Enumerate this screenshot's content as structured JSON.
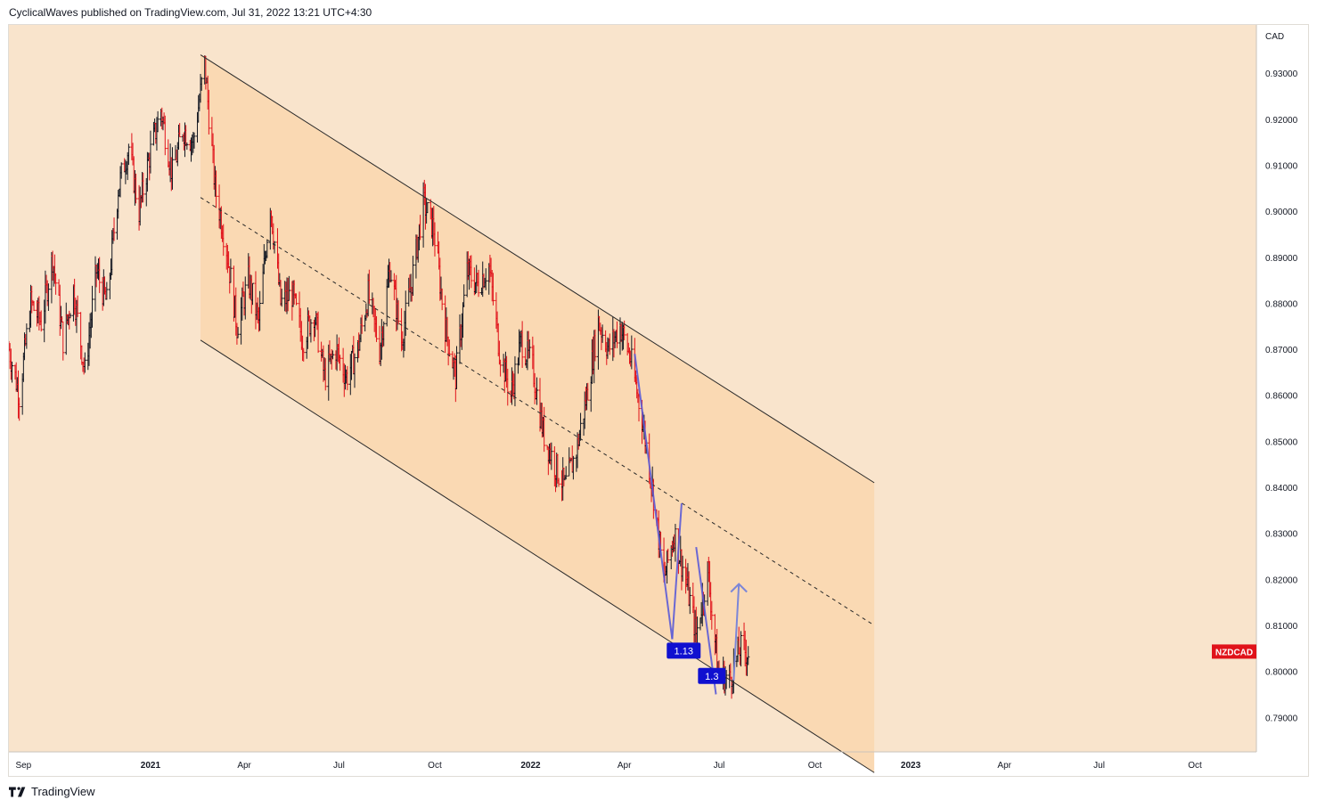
{
  "header": {
    "publish_line": "CyclicalWaves published on TradingView.com, Jul 31, 2022 13:21 UTC+4:30"
  },
  "footer": {
    "brand": "TradingView"
  },
  "colors": {
    "background": "#f9e4cc",
    "channel_fill": "#fad9b3",
    "candle_up": "#131722",
    "candle_down": "#e0121a",
    "wave_line": "#5b5bd6",
    "label_bg": "#1010d0",
    "symbol_badge": "#e0121a"
  },
  "chart_data": {
    "type": "ohlc_bar",
    "symbol": "NZDCAD",
    "y_axis_label": "CAD",
    "ylim": [
      0.7825,
      0.9405
    ],
    "y_ticks": [
      "0.93000",
      "0.92000",
      "0.91000",
      "0.90000",
      "0.89000",
      "0.88000",
      "0.87000",
      "0.86000",
      "0.85000",
      "0.84000",
      "0.83000",
      "0.82000",
      "0.81000",
      "0.80000",
      "0.79000"
    ],
    "x_ticks": [
      {
        "label": "Sep",
        "date": "2020-09-01",
        "bold": false
      },
      {
        "label": "2021",
        "date": "2021-01-01",
        "bold": true
      },
      {
        "label": "Apr",
        "date": "2021-04-01",
        "bold": false
      },
      {
        "label": "Jul",
        "date": "2021-07-01",
        "bold": false
      },
      {
        "label": "Oct",
        "date": "2021-10-01",
        "bold": false
      },
      {
        "label": "2022",
        "date": "2022-01-01",
        "bold": true
      },
      {
        "label": "Apr",
        "date": "2022-04-01",
        "bold": false
      },
      {
        "label": "Jul",
        "date": "2022-07-01",
        "bold": false
      },
      {
        "label": "Oct",
        "date": "2022-10-01",
        "bold": false
      },
      {
        "label": "2023",
        "date": "2023-01-01",
        "bold": true
      },
      {
        "label": "Apr",
        "date": "2023-04-01",
        "bold": false
      },
      {
        "label": "Jul",
        "date": "2023-07-01",
        "bold": false
      },
      {
        "label": "Oct",
        "date": "2023-10-01",
        "bold": false
      }
    ],
    "x_range": [
      "2020-08-18",
      "2023-11-29"
    ],
    "price_path": [
      [
        "2020-08-18",
        0.87
      ],
      [
        "2020-08-28",
        0.86
      ],
      [
        "2020-09-08",
        0.88
      ],
      [
        "2020-09-18",
        0.876
      ],
      [
        "2020-09-29",
        0.89
      ],
      [
        "2020-10-09",
        0.872
      ],
      [
        "2020-10-19",
        0.883
      ],
      [
        "2020-10-30",
        0.865
      ],
      [
        "2020-11-10",
        0.887
      ],
      [
        "2020-11-20",
        0.88
      ],
      [
        "2020-12-01",
        0.905
      ],
      [
        "2020-12-11",
        0.914
      ],
      [
        "2020-12-21",
        0.9
      ],
      [
        "2020-12-31",
        0.912
      ],
      [
        "2021-01-11",
        0.922
      ],
      [
        "2021-01-22",
        0.908
      ],
      [
        "2021-02-01",
        0.918
      ],
      [
        "2021-02-11",
        0.915
      ],
      [
        "2021-02-22",
        0.932
      ],
      [
        "2021-03-04",
        0.905
      ],
      [
        "2021-03-15",
        0.892
      ],
      [
        "2021-03-25",
        0.875
      ],
      [
        "2021-04-05",
        0.885
      ],
      [
        "2021-04-15",
        0.876
      ],
      [
        "2021-04-26",
        0.902
      ],
      [
        "2021-05-06",
        0.88
      ],
      [
        "2021-05-17",
        0.882
      ],
      [
        "2021-05-27",
        0.872
      ],
      [
        "2021-06-07",
        0.878
      ],
      [
        "2021-06-17",
        0.864
      ],
      [
        "2021-06-28",
        0.87
      ],
      [
        "2021-07-08",
        0.864
      ],
      [
        "2021-07-19",
        0.87
      ],
      [
        "2021-07-29",
        0.882
      ],
      [
        "2021-08-09",
        0.87
      ],
      [
        "2021-08-19",
        0.888
      ],
      [
        "2021-08-30",
        0.872
      ],
      [
        "2021-09-09",
        0.885
      ],
      [
        "2021-09-20",
        0.902
      ],
      [
        "2021-09-30",
        0.896
      ],
      [
        "2021-10-11",
        0.875
      ],
      [
        "2021-10-21",
        0.864
      ],
      [
        "2021-11-01",
        0.887
      ],
      [
        "2021-11-11",
        0.884
      ],
      [
        "2021-11-22",
        0.888
      ],
      [
        "2021-12-02",
        0.87
      ],
      [
        "2021-12-13",
        0.86
      ],
      [
        "2021-12-23",
        0.872
      ],
      [
        "2022-01-03",
        0.866
      ],
      [
        "2022-01-13",
        0.852
      ],
      [
        "2022-01-24",
        0.845
      ],
      [
        "2022-02-03",
        0.84
      ],
      [
        "2022-02-14",
        0.848
      ],
      [
        "2022-02-24",
        0.86
      ],
      [
        "2022-03-07",
        0.876
      ],
      [
        "2022-03-17",
        0.87
      ],
      [
        "2022-03-28",
        0.875
      ],
      [
        "2022-04-07",
        0.868
      ],
      [
        "2022-04-18",
        0.855
      ],
      [
        "2022-04-28",
        0.84
      ],
      [
        "2022-05-09",
        0.82
      ],
      [
        "2022-05-19",
        0.83
      ],
      [
        "2022-05-30",
        0.82
      ],
      [
        "2022-06-09",
        0.808
      ],
      [
        "2022-06-20",
        0.822
      ],
      [
        "2022-06-30",
        0.8
      ],
      [
        "2022-07-11",
        0.798
      ],
      [
        "2022-07-21",
        0.805
      ],
      [
        "2022-07-29",
        0.804
      ]
    ],
    "channel": {
      "upper": [
        [
          "2021-02-18",
          0.934
        ],
        [
          "2022-11-27",
          0.841
        ]
      ],
      "middle": [
        [
          "2021-02-18",
          0.903
        ],
        [
          "2022-11-27",
          0.81
        ]
      ],
      "lower": [
        [
          "2021-02-18",
          0.872
        ],
        [
          "2022-11-27",
          0.778
        ]
      ]
    },
    "wave_lines": [
      [
        [
          "2022-04-11",
          0.869
        ],
        [
          "2022-05-17",
          0.807
        ]
      ],
      [
        [
          "2022-05-17",
          0.807
        ],
        [
          "2022-05-26",
          0.8365
        ]
      ],
      [
        [
          "2022-06-09",
          0.827
        ],
        [
          "2022-06-28",
          0.795
        ]
      ]
    ],
    "wave_arrow": [
      [
        "2022-07-15",
        0.798
      ],
      [
        "2022-07-20",
        0.819
      ]
    ],
    "labels": [
      {
        "text": "1.13",
        "date": "2022-05-28",
        "price": 0.8045
      },
      {
        "text": "1.3",
        "date": "2022-06-24",
        "price": 0.799
      }
    ],
    "last_price": 0.8043
  }
}
